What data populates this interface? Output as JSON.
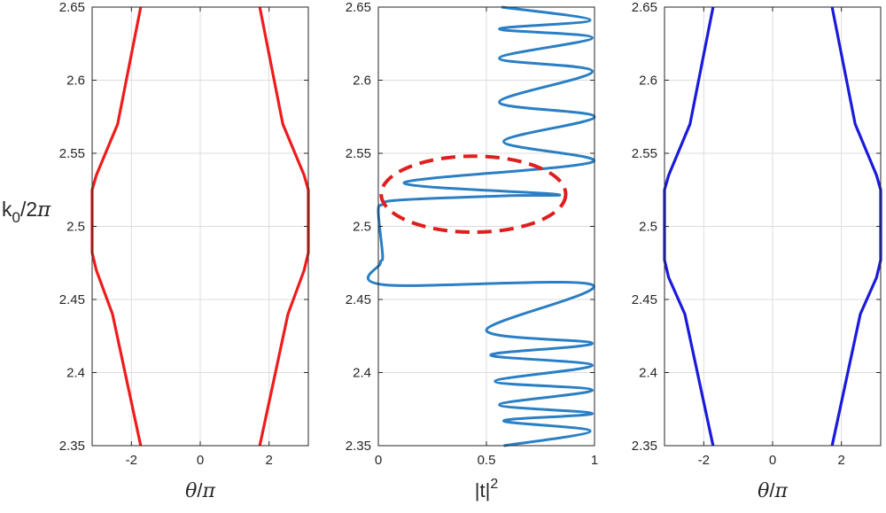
{
  "chart_data": [
    {
      "type": "line",
      "panel": "left",
      "ylabel": "k_0/2π",
      "xlabel": "θ/π",
      "xlim": [
        -3.14159,
        3.14159
      ],
      "ylim": [
        2.35,
        2.65
      ],
      "xticks": [
        -2,
        0,
        2
      ],
      "xtick_labels": [
        "-2",
        "0",
        "2"
      ],
      "yticks": [
        2.35,
        2.4,
        2.45,
        2.5,
        2.55,
        2.6,
        2.65
      ],
      "ytick_labels": [
        "2.35",
        "2.4",
        "2.45",
        "2.5",
        "2.55",
        "2.6",
        "2.65"
      ],
      "grid": true,
      "color": "#ee1c1c",
      "series": [
        {
          "x": [
            -1.73,
            -2.55,
            -3.02,
            -3.14159,
            -3.14159,
            -3.02,
            -2.4,
            -1.73
          ],
          "y": [
            2.35,
            2.44,
            2.47,
            2.482,
            2.525,
            2.535,
            2.57,
            2.65
          ]
        },
        {
          "x": [
            1.73,
            2.55,
            3.02,
            3.14159,
            3.14159,
            3.02,
            2.4,
            1.73
          ],
          "y": [
            2.35,
            2.44,
            2.47,
            2.482,
            2.525,
            2.535,
            2.57,
            2.65
          ]
        }
      ]
    },
    {
      "type": "line",
      "panel": "middle",
      "xlabel": "|t|^2",
      "xlim": [
        0,
        1
      ],
      "ylim": [
        2.35,
        2.65
      ],
      "xticks": [
        0,
        0.5,
        1
      ],
      "xtick_labels": [
        "0",
        "0.5",
        "1"
      ],
      "yticks": [
        2.35,
        2.4,
        2.45,
        2.5,
        2.55,
        2.6,
        2.65
      ],
      "ytick_labels": [
        "2.35",
        "2.4",
        "2.45",
        "2.5",
        "2.55",
        "2.6",
        "2.65"
      ],
      "grid": true,
      "color": "#2a7fc4",
      "annotation": {
        "shape": "dashed-ellipse",
        "color": "#e01e1e",
        "center": [
          0.44,
          2.522
        ],
        "rx": 0.44,
        "ry": 0.013
      },
      "series": [
        {
          "x": [
            0.58,
            0.98,
            0.58,
            0.99,
            0.56,
            0.99,
            0.54,
            0.99,
            0.52,
            0.99,
            0.5,
            0.99,
            0.03,
            0.01,
            0.02,
            0.0,
            0.02,
            0.1,
            0.6,
            0.82,
            0.12,
            0.99,
            0.58,
            1.0,
            0.56,
            0.99,
            0.56,
            0.99,
            0.56,
            0.98,
            0.57
          ],
          "y": [
            2.35,
            2.36,
            2.367,
            2.372,
            2.378,
            2.388,
            2.394,
            2.405,
            2.412,
            2.42,
            2.429,
            2.46,
            2.46,
            2.475,
            2.48,
            2.51,
            2.515,
            2.518,
            2.521,
            2.522,
            2.53,
            2.544,
            2.558,
            2.575,
            2.585,
            2.606,
            2.615,
            2.629,
            2.635,
            2.641,
            2.65
          ]
        }
      ]
    },
    {
      "type": "line",
      "panel": "right",
      "xlabel": "θ/π",
      "xlim": [
        -3.14159,
        3.14159
      ],
      "ylim": [
        2.35,
        2.65
      ],
      "xticks": [
        -2,
        0,
        2
      ],
      "xtick_labels": [
        "-2",
        "0",
        "2"
      ],
      "yticks": [
        2.35,
        2.4,
        2.45,
        2.5,
        2.55,
        2.6,
        2.65
      ],
      "ytick_labels": [
        "2.35",
        "2.4",
        "2.45",
        "2.5",
        "2.55",
        "2.6",
        "2.65"
      ],
      "grid": true,
      "color": "#1a1adc",
      "series": [
        {
          "x": [
            -1.73,
            -2.55,
            -3.02,
            -3.14159,
            -3.14159,
            -3.02,
            -2.4,
            -1.73
          ],
          "y": [
            2.35,
            2.44,
            2.465,
            2.477,
            2.525,
            2.535,
            2.57,
            2.65
          ]
        },
        {
          "x": [
            1.73,
            2.55,
            3.02,
            3.14159,
            3.14159,
            3.02,
            2.4,
            1.73
          ],
          "y": [
            2.35,
            2.44,
            2.465,
            2.477,
            2.525,
            2.535,
            2.57,
            2.65
          ]
        }
      ]
    }
  ]
}
